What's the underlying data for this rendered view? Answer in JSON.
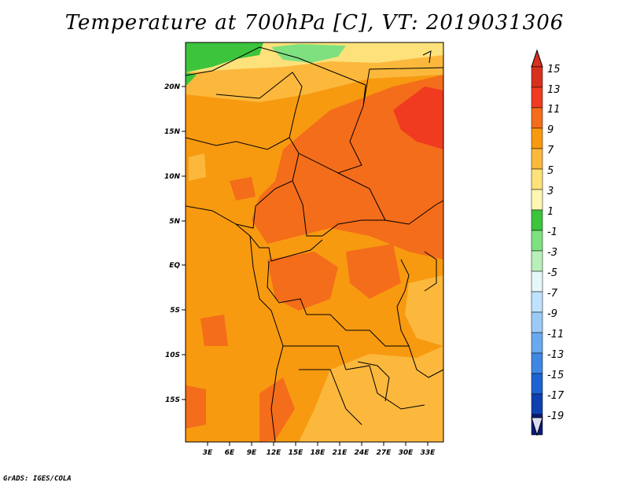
{
  "title": "Temperature at 700hPa [C], VT: 2019031306",
  "credit": "GrADS: IGES/COLA",
  "map": {
    "lat_labels": [
      "20N",
      "15N",
      "10N",
      "5N",
      "EQ",
      "5S",
      "10S",
      "15S"
    ],
    "lon_labels": [
      "3E",
      "6E",
      "9E",
      "12E",
      "15E",
      "18E",
      "21E",
      "24E",
      "27E",
      "30E",
      "33E"
    ]
  },
  "colorbar": {
    "labels": [
      "15",
      "13",
      "11",
      "9",
      "7",
      "5",
      "3",
      "1",
      "-1",
      "-3",
      "-5",
      "-7",
      "-9",
      "-11",
      "-13",
      "-15",
      "-17",
      "-19"
    ],
    "colors": [
      "#d7301f",
      "#f03b20",
      "#f46d1a",
      "#f79a10",
      "#fbb83d",
      "#fde17a",
      "#fff6b3",
      "#3cc43c",
      "#7fe07f",
      "#b9f0b9",
      "#e6f7f7",
      "#bfe3ff",
      "#9ccaf5",
      "#6aa9ef",
      "#3f87e3",
      "#1e63d1",
      "#0f40b0",
      "#0a1a78"
    ],
    "top_cap_color": "#d7301f",
    "bottom_cap_color": "#dcdcf5"
  }
}
